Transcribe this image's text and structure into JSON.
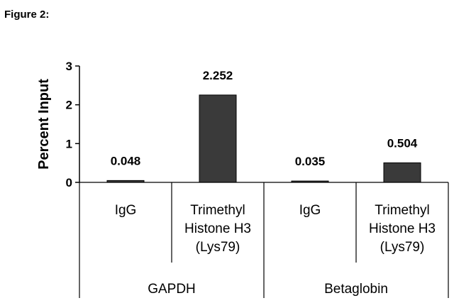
{
  "figure_label": "Figure 2:",
  "chart_data": {
    "type": "bar",
    "ylabel": "Percent Input",
    "ylim": [
      0,
      3
    ],
    "yticks": [
      "0",
      "1",
      "2",
      "3"
    ],
    "categories": [
      {
        "lines": [
          "IgG"
        ]
      },
      {
        "lines": [
          "Trimethyl",
          "Histone H3",
          "(Lys79)"
        ]
      },
      {
        "lines": [
          "IgG"
        ]
      },
      {
        "lines": [
          "Trimethyl",
          "Histone H3",
          "(Lys79)"
        ]
      }
    ],
    "values": [
      0.048,
      2.252,
      0.035,
      0.504
    ],
    "value_labels": [
      "0.048",
      "2.252",
      "0.035",
      "0.504"
    ],
    "groups": [
      {
        "name": "GAPDH",
        "categories": [
          0,
          1
        ]
      },
      {
        "name": "Betaglobin",
        "categories": [
          2,
          3
        ]
      }
    ],
    "bar_color": "#3a3a3a",
    "grid": false,
    "legend": "none"
  }
}
